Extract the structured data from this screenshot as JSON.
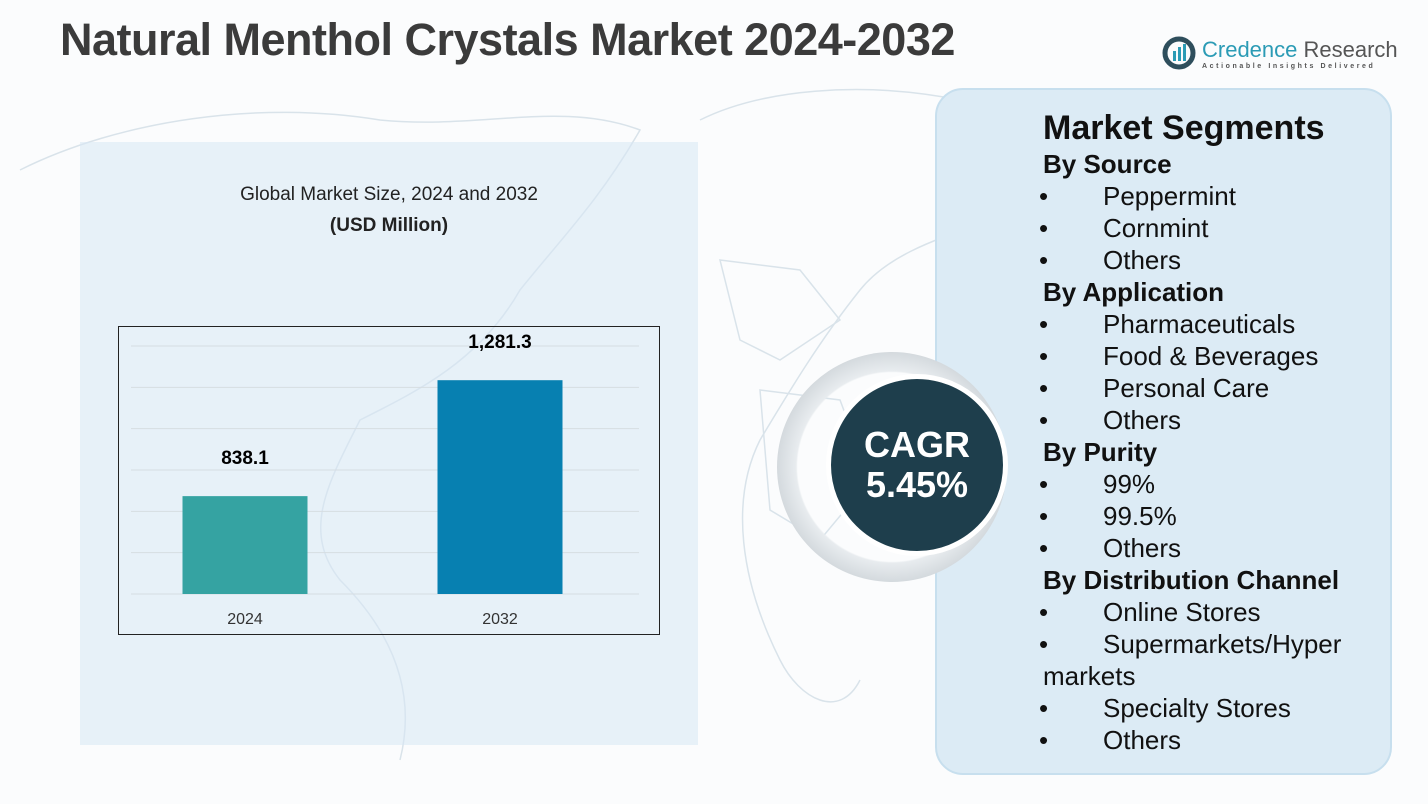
{
  "title": "Natural Menthol Crystals Market 2024-2032",
  "logo": {
    "name_part1": "Credence",
    "name_part2": "Research",
    "tagline": "Actionable Insights Delivered"
  },
  "chart_data": {
    "type": "bar",
    "title": "Global Market Size, 2024 and 2032",
    "subtitle": "(USD Million)",
    "categories": [
      "2024",
      "2032"
    ],
    "values": [
      838.1,
      1281.3
    ],
    "value_labels": [
      "838.1",
      "1,281.3"
    ],
    "colors": [
      "#35a3a2",
      "#0780b1"
    ],
    "ylim": [
      464,
      1412
    ],
    "grid": true
  },
  "cagr": {
    "label": "CAGR",
    "value": "5.45%"
  },
  "segments": {
    "heading": "Market Segments",
    "groups": [
      {
        "title": "By Source",
        "items": [
          "Peppermint",
          "Cornmint",
          "Others"
        ]
      },
      {
        "title": "By Application",
        "items": [
          "Pharmaceuticals",
          "Food & Beverages",
          "Personal Care",
          "Others"
        ]
      },
      {
        "title": "By Purity",
        "items": [
          "99%",
          "99.5%",
          "Others"
        ]
      },
      {
        "title": "By Distribution Channel",
        "items": [
          "Online Stores",
          "Supermarkets/Hyper markets",
          "Specialty Stores",
          "Others"
        ]
      }
    ],
    "bullet": "•"
  }
}
